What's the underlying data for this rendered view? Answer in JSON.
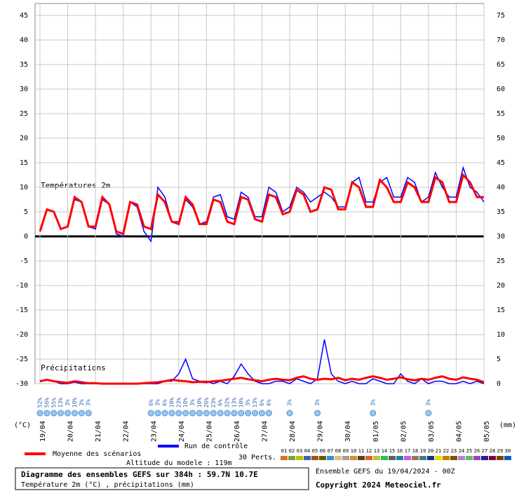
{
  "chart_data": {
    "type": "line",
    "title": "Diagramme des ensembles GEFS sur 384h : 59.7N 10.7E",
    "subtitle": "Température 2m (°C) , précipitations (mm)",
    "altitude": "Altitude du modele : 119m",
    "run_info": "Ensemble GEFS du 19/04/2024 - 00Z",
    "copyright": "Copyright 2024 Meteociel.fr",
    "temp_label": "Températures 2m",
    "precip_label": "Précipitations",
    "y_unit": "(°C)",
    "y2_unit": "(mm)",
    "members_title": "30 Perts.",
    "categories": [
      "19/04",
      null,
      null,
      null,
      "20/04",
      null,
      null,
      null,
      "21/04",
      null,
      null,
      null,
      "22/04",
      null,
      null,
      null,
      "23/04",
      null,
      null,
      null,
      "24/04",
      null,
      null,
      null,
      "25/04",
      null,
      null,
      null,
      "26/04",
      null,
      null,
      null,
      "27/04",
      null,
      null,
      null,
      "28/04",
      null,
      null,
      null,
      "29/04",
      null,
      null,
      null,
      "30/04",
      null,
      null,
      null,
      "01/05",
      null,
      null,
      null,
      "02/05",
      null,
      null,
      null,
      "03/05",
      null,
      null,
      null,
      "04/05",
      null,
      null,
      null,
      "05/05"
    ],
    "ylim": [
      -30,
      45
    ],
    "yticks": [
      -30,
      -25,
      -20,
      -15,
      -10,
      -5,
      0,
      5,
      10,
      15,
      20,
      25,
      30,
      35,
      40,
      45
    ],
    "y2lim": [
      0,
      75
    ],
    "y2ticks": [
      0,
      5,
      10,
      15,
      20,
      25,
      30,
      35,
      40,
      45,
      50,
      55,
      60,
      65,
      70,
      75
    ],
    "grid": true,
    "series": [
      {
        "name": "Moyenne des scénarios",
        "color": "#ff0000",
        "values": [
          1,
          5.5,
          5,
          1.5,
          2,
          8,
          7,
          2,
          2,
          8,
          6.5,
          1,
          0.5,
          7,
          6.5,
          2,
          1.5,
          8.5,
          7,
          3,
          2.5,
          8,
          6.5,
          2.5,
          2.5,
          7.5,
          7,
          3,
          2.5,
          8,
          7.5,
          3.5,
          3,
          8.5,
          8,
          4.5,
          5,
          9.5,
          8.5,
          5,
          5.5,
          10,
          9.5,
          5.5,
          5.5,
          11,
          10,
          6,
          6,
          11.5,
          10,
          7,
          7,
          11,
          10,
          7,
          7,
          12,
          11,
          7,
          7,
          12.5,
          11,
          8,
          8
        ]
      },
      {
        "name": "Run de contrôle",
        "color": "#0000ff",
        "values": [
          1,
          5.5,
          5,
          1.5,
          2,
          7.5,
          7,
          2,
          1.5,
          7.5,
          6.5,
          0.5,
          0,
          7,
          6,
          1,
          -1,
          10,
          8,
          3,
          3,
          7.5,
          6,
          2.5,
          3,
          8,
          8.5,
          4,
          3.5,
          9,
          8,
          4,
          4,
          10,
          9,
          5,
          6,
          10,
          9,
          7,
          8,
          9,
          8,
          6,
          6,
          11,
          12,
          7,
          7,
          11,
          12,
          8,
          8,
          12,
          11,
          7,
          8,
          13,
          10,
          8,
          8,
          14,
          10,
          9,
          7
        ]
      },
      {
        "color": "#ff0000",
        "axis": "y2",
        "values": [
          0.5,
          0.8,
          0.5,
          0.3,
          0.2,
          0.5,
          0.3,
          0.1,
          0.1,
          0,
          0,
          0,
          0,
          0,
          0,
          0.1,
          0.2,
          0.3,
          0.5,
          0.8,
          0.6,
          0.5,
          0.3,
          0.4,
          0.3,
          0.5,
          0.6,
          0.8,
          1,
          1.2,
          0.9,
          0.7,
          0.5,
          0.8,
          1,
          0.8,
          0.7,
          1.2,
          1.5,
          1,
          0.8,
          1,
          0.9,
          1.2,
          0.7,
          1,
          0.8,
          1.2,
          1.5,
          1.2,
          0.8,
          1,
          1.3,
          0.9,
          0.7,
          1,
          0.8,
          1.2,
          1.5,
          1,
          0.8,
          1.3,
          1,
          0.8,
          0.3
        ]
      },
      {
        "color": "#0000ff",
        "axis": "y2",
        "values": [
          0.5,
          0.8,
          0.5,
          0,
          0,
          0.3,
          0,
          0,
          0,
          0,
          0,
          0,
          0,
          0,
          0,
          0,
          0,
          0,
          0.5,
          0.5,
          2,
          5,
          1,
          0.5,
          0.5,
          0,
          0.5,
          0,
          1.5,
          4,
          2,
          0.5,
          0,
          0,
          0.5,
          0.5,
          0,
          1,
          0.5,
          0,
          1,
          9,
          2,
          0.5,
          0,
          0.5,
          0,
          0,
          1,
          0.5,
          0,
          0,
          2,
          0.5,
          0,
          1,
          0,
          0.5,
          0.5,
          0,
          0,
          0.5,
          0,
          0.5,
          0
        ]
      }
    ],
    "snow": {
      "values": [
        52,
        56,
        55,
        13,
        3,
        10,
        3,
        3,
        null,
        null,
        null,
        null,
        null,
        null,
        null,
        null,
        6,
        3,
        6,
        10,
        23,
        10,
        3,
        10,
        26,
        23,
        6,
        32,
        13,
        10,
        3,
        13,
        6,
        6,
        null,
        null,
        3,
        null,
        null,
        null,
        3,
        null,
        null,
        null,
        null,
        null,
        null,
        null,
        3,
        null,
        null,
        null,
        null,
        null,
        null,
        null,
        3,
        null,
        null,
        null,
        null,
        null,
        null,
        null,
        null
      ],
      "value_labels": [
        "52%",
        "56%",
        "55%",
        "13%",
        "3%",
        "10%",
        "3%",
        "3%",
        null,
        null,
        null,
        null,
        null,
        null,
        null,
        null,
        "6%",
        "3%",
        "6%",
        "10%",
        "23%",
        "10%",
        "3%",
        "10%",
        "26%",
        "23%",
        "6%",
        "32%",
        "13%",
        "10%",
        "3%",
        "13%",
        "6%",
        "6%",
        null,
        null,
        "3%",
        null,
        null,
        null,
        "3%",
        null,
        null,
        null,
        null,
        null,
        null,
        null,
        "3%",
        null,
        null,
        null,
        null,
        null,
        null,
        null,
        "3%",
        null,
        null,
        null,
        null,
        null,
        null,
        null,
        null
      ]
    },
    "members": [
      {
        "name": "01",
        "color": "#e07020"
      },
      {
        "name": "02",
        "color": "#80a040"
      },
      {
        "name": "03",
        "color": "#c0c000"
      },
      {
        "name": "04",
        "color": "#4060c0"
      },
      {
        "name": "05",
        "color": "#a05020"
      },
      {
        "name": "06",
        "color": "#606000"
      },
      {
        "name": "07",
        "color": "#3090e0"
      },
      {
        "name": "08",
        "color": "#e0c080"
      },
      {
        "name": "09",
        "color": "#a0a0a0"
      },
      {
        "name": "10",
        "color": "#d09030"
      },
      {
        "name": "11",
        "color": "#604020"
      },
      {
        "name": "12",
        "color": "#e06030"
      },
      {
        "name": "13",
        "color": "#c0c040"
      },
      {
        "name": "14",
        "color": "#20c060"
      },
      {
        "name": "15",
        "color": "#606060"
      },
      {
        "name": "16",
        "color": "#2080a0"
      },
      {
        "name": "17",
        "color": "#c060e0"
      },
      {
        "name": "18",
        "color": "#a07050"
      },
      {
        "name": "19",
        "color": "#408080"
      },
      {
        "name": "20",
        "color": "#203080"
      },
      {
        "name": "21",
        "color": "#e0e000"
      },
      {
        "name": "22",
        "color": "#c08000"
      },
      {
        "name": "23",
        "color": "#805000"
      },
      {
        "name": "24",
        "color": "#b080e0"
      },
      {
        "name": "25",
        "color": "#60c060"
      },
      {
        "name": "26",
        "color": "#a040c0"
      },
      {
        "name": "27",
        "color": "#2020a0"
      },
      {
        "name": "28",
        "color": "#800040"
      },
      {
        "name": "29",
        "color": "#804000"
      },
      {
        "name": "30",
        "color": "#0060c0"
      }
    ]
  }
}
